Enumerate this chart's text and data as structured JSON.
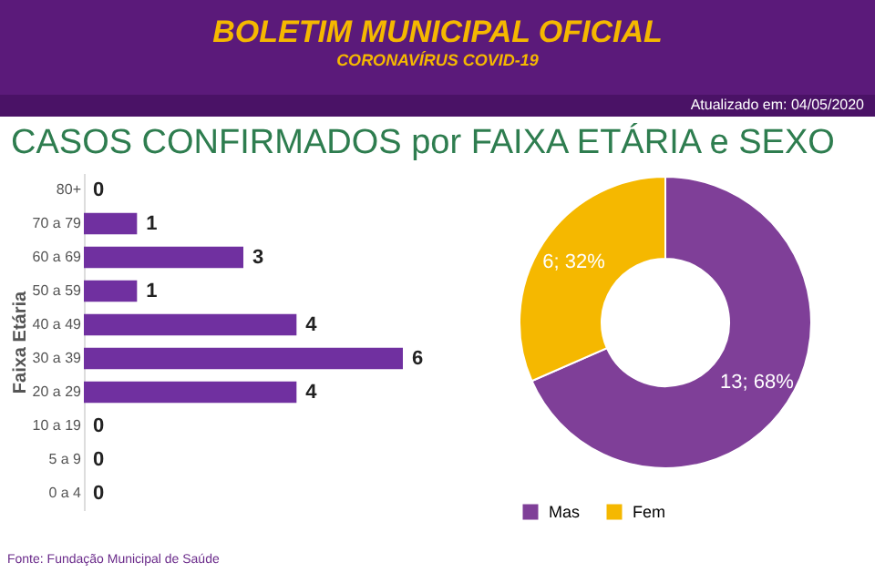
{
  "chart_data": [
    {
      "type": "other",
      "title": "BOLETIM MUNICIPAL OFICIAL",
      "subtitle": "CORONAVÍRUS COVID-19",
      "annotations": [
        "Atualizado em: 04/05/2020",
        "CASOS CONFIRMADOS por FAIXA ETÁRIA e SEXO"
      ]
    },
    {
      "type": "bar",
      "orientation": "horizontal",
      "ylabel": "Faixa Etária",
      "categories": [
        "80+",
        "70 a 79",
        "60 a 69",
        "50 a 59",
        "40 a 49",
        "30 a 39",
        "20 a 29",
        "10 a 19",
        "5 a 9",
        "0 a 4"
      ],
      "values": [
        0,
        1,
        3,
        1,
        4,
        6,
        4,
        0,
        0,
        0
      ],
      "color": "#7030a0",
      "data_labels": true,
      "annotations": [
        "Fonte: Fundação Municipal de Saúde"
      ]
    },
    {
      "type": "donut",
      "categories": [
        "Mas",
        "Fem"
      ],
      "values": [
        13,
        6
      ],
      "colors": [
        "#7f3f98",
        "#f5b800"
      ],
      "value_labels": [
        "13; 68%",
        "6; 32%"
      ],
      "legend": "bottom"
    }
  ]
}
